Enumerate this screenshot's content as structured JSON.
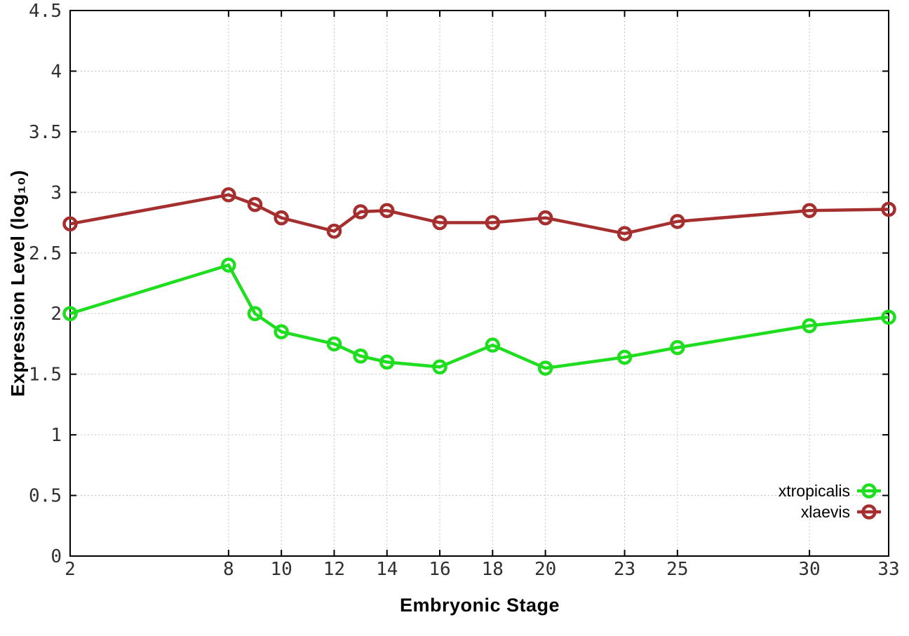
{
  "page": {
    "background": "#ffffff"
  },
  "chart_data": {
    "type": "line",
    "title": "",
    "xlabel": "Embryonic Stage",
    "ylabel": "Expression Level (log₁₀)",
    "x": [
      2,
      8,
      9,
      10,
      12,
      13,
      14,
      16,
      18,
      20,
      23,
      25,
      30,
      33
    ],
    "x_ticks": [
      2,
      8,
      10,
      12,
      14,
      16,
      18,
      20,
      23,
      25,
      30,
      33
    ],
    "xlim": [
      2,
      33
    ],
    "ylim": [
      0,
      4.5
    ],
    "y_tick_step": 0.5,
    "grid": true,
    "legend_position": "bottom-right-inside",
    "series": [
      {
        "name": "xtropicalis",
        "color": "#1fdd1f",
        "marker": "open-circle",
        "values": [
          2.0,
          2.4,
          2.0,
          1.85,
          1.75,
          1.65,
          1.6,
          1.56,
          1.74,
          1.55,
          1.64,
          1.72,
          1.9,
          1.97
        ]
      },
      {
        "name": "xlaevis",
        "color": "#a52f2f",
        "marker": "open-circle",
        "values": [
          2.74,
          2.98,
          2.9,
          2.79,
          2.68,
          2.84,
          2.85,
          2.75,
          2.75,
          2.79,
          2.66,
          2.76,
          2.85,
          2.86
        ]
      }
    ]
  }
}
